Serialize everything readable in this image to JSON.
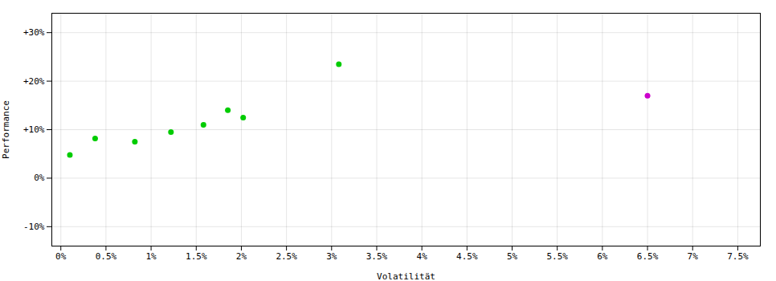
{
  "chart_data": {
    "type": "scatter",
    "xlabel": "Volatilität",
    "ylabel": "Performance",
    "xlim": [
      -0.1,
      7.75
    ],
    "ylim": [
      -14,
      34
    ],
    "xticks": [
      {
        "value": 0.0,
        "label": "0%"
      },
      {
        "value": 0.5,
        "label": "0.5%"
      },
      {
        "value": 1.0,
        "label": "1%"
      },
      {
        "value": 1.5,
        "label": "1.5%"
      },
      {
        "value": 2.0,
        "label": "2%"
      },
      {
        "value": 2.5,
        "label": "2.5%"
      },
      {
        "value": 3.0,
        "label": "3%"
      },
      {
        "value": 3.5,
        "label": "3.5%"
      },
      {
        "value": 4.0,
        "label": "4%"
      },
      {
        "value": 4.5,
        "label": "4.5%"
      },
      {
        "value": 5.0,
        "label": "5%"
      },
      {
        "value": 5.5,
        "label": "5.5%"
      },
      {
        "value": 6.0,
        "label": "6%"
      },
      {
        "value": 6.5,
        "label": "6.5%"
      },
      {
        "value": 7.0,
        "label": "7%"
      },
      {
        "value": 7.5,
        "label": "7.5%"
      }
    ],
    "yticks": [
      {
        "value": -10,
        "label": "-10%"
      },
      {
        "value": 0,
        "label": "0%"
      },
      {
        "value": 10,
        "label": "+10%"
      },
      {
        "value": 20,
        "label": "+20%"
      },
      {
        "value": 30,
        "label": "+30%"
      }
    ],
    "grid": true,
    "series": [
      {
        "color": "#00cc00",
        "x": [
          0.1,
          0.38,
          0.82,
          1.22,
          1.58,
          1.85,
          2.02,
          3.08
        ],
        "values": [
          4.8,
          8.2,
          7.5,
          9.5,
          11.0,
          14.0,
          12.5,
          23.5
        ]
      },
      {
        "color": "#cc00cc",
        "x": [
          6.5
        ],
        "values": [
          17.0
        ]
      }
    ]
  }
}
